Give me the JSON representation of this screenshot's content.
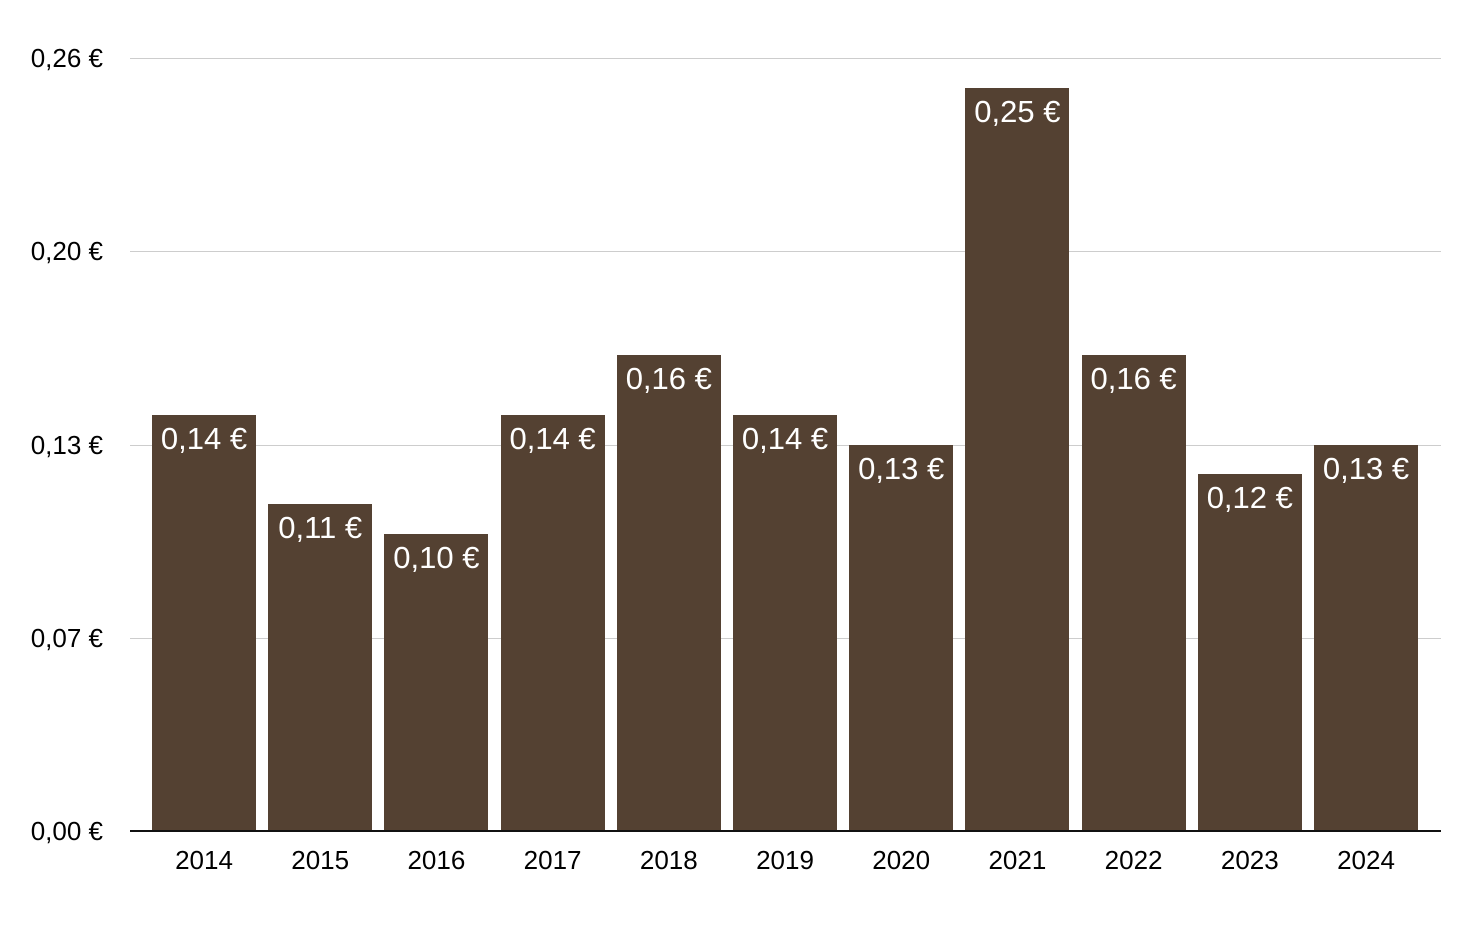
{
  "chart_data": {
    "type": "bar",
    "title": "",
    "xlabel": "",
    "ylabel": "",
    "categories": [
      "2014",
      "2015",
      "2016",
      "2017",
      "2018",
      "2019",
      "2020",
      "2021",
      "2022",
      "2023",
      "2024"
    ],
    "values": [
      0.14,
      0.11,
      0.1,
      0.14,
      0.16,
      0.14,
      0.13,
      0.25,
      0.16,
      0.12,
      0.13
    ],
    "value_labels": [
      "0,14 €",
      "0,11 €",
      "0,10 €",
      "0,14 €",
      "0,16 €",
      "0,14 €",
      "0,13 €",
      "0,25 €",
      "0,16 €",
      "0,12 €",
      "0,13 €"
    ],
    "ylim": [
      0,
      0.26
    ],
    "yticks": [
      {
        "value": 0.0,
        "label": "0,00 €"
      },
      {
        "value": 0.065,
        "label": "0,07 €"
      },
      {
        "value": 0.13,
        "label": "0,13 €"
      },
      {
        "value": 0.195,
        "label": "0,20 €"
      },
      {
        "value": 0.26,
        "label": "0,26 €"
      }
    ],
    "grid": true,
    "legend": false,
    "colors": {
      "bar": "#544132",
      "bar_label_text": "#ffffff",
      "axis_text": "#000000",
      "gridline": "#cdcdcd",
      "axis_line": "#111111",
      "background": "#ffffff"
    }
  }
}
